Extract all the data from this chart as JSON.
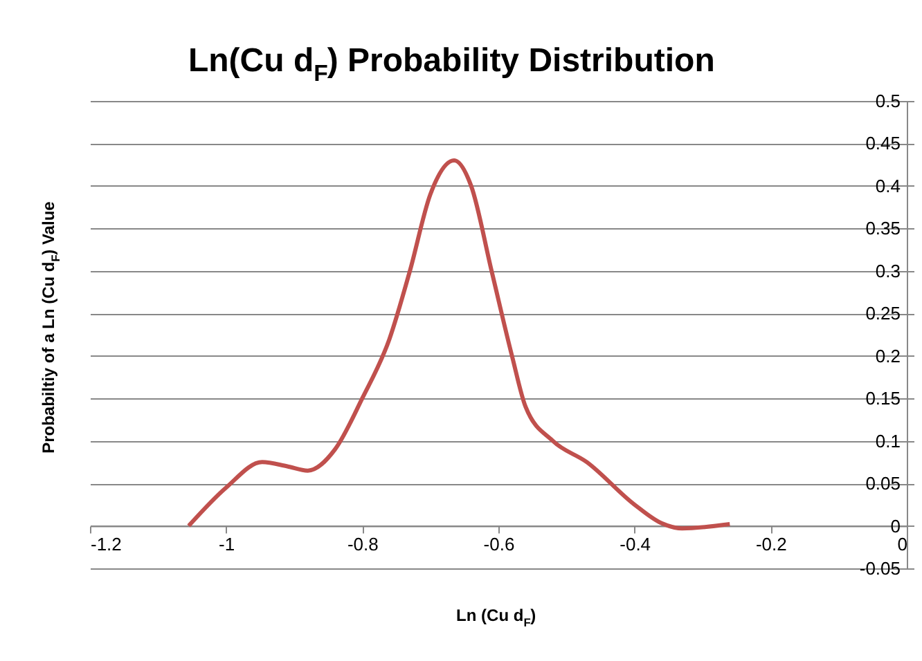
{
  "chart_data": {
    "type": "line",
    "title": "Ln(Cu d$_{F}$) Probability Distribution",
    "xlabel": "Ln (Cu d$_{F}$)",
    "ylabel": "Probabiltiy of a Ln (Cu d$_{F}$) Value",
    "x": [
      -1.055,
      -1.0,
      -0.947,
      -0.91,
      -0.88,
      -0.84,
      -0.8,
      -0.76,
      -0.73,
      -0.7,
      -0.665,
      -0.64,
      -0.61,
      -0.58,
      -0.56,
      -0.52,
      -0.47,
      -0.4,
      -0.36,
      -0.33,
      -0.26
    ],
    "series": [
      {
        "color": "#c0504d",
        "values": [
          0,
          0.045,
          0.075,
          0.07,
          0.065,
          0.09,
          0.15,
          0.22,
          0.3,
          0.39,
          0.43,
          0.4,
          0.3,
          0.2,
          0.14,
          0.1,
          0.075,
          0.025,
          0.003,
          -0.003,
          0.002
        ]
      }
    ],
    "xlim": [
      -1.2,
      0
    ],
    "xticks": [
      -1.2,
      -1,
      -0.8,
      -0.6,
      -0.4,
      -0.2,
      0
    ],
    "ylim": [
      -0.05,
      0.5
    ],
    "yticks": [
      -0.05,
      0,
      0.05,
      0.1,
      0.15,
      0.2,
      0.25,
      0.3,
      0.35,
      0.4,
      0.45,
      0.5
    ],
    "grid": "y",
    "legend": false,
    "marker": "none",
    "line_style": "solid"
  }
}
